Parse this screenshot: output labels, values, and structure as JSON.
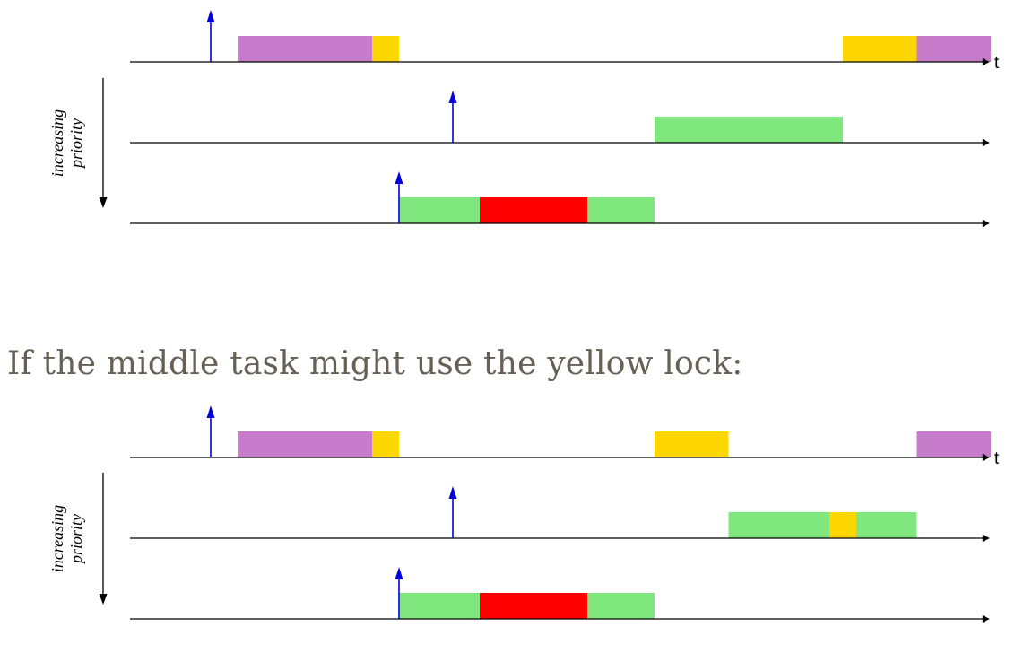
{
  "caption": "If the middle task might use the yellow lock:",
  "priority_label_line1": "increasing",
  "priority_label_line2": "priority",
  "time_label": "t",
  "colors": {
    "purple": "#c77ccb",
    "yellow": "#ffd700",
    "green": "#80e77f",
    "red": "#ff0000",
    "arrival": "#0000dd",
    "axis": "#000000"
  },
  "diagrams": [
    {
      "name": "without-middle-lock",
      "tasks": [
        {
          "name": "low-priority-task",
          "arrival": 3,
          "segments": [
            {
              "start": 4,
              "end": 9,
              "color": "purple"
            },
            {
              "start": 9,
              "end": 10,
              "color": "yellow"
            },
            {
              "start": 26.5,
              "end": 29.25,
              "color": "yellow"
            },
            {
              "start": 29.25,
              "end": 32,
              "color": "purple"
            }
          ]
        },
        {
          "name": "middle-priority-task",
          "arrival": 12,
          "segments": [
            {
              "start": 19.5,
              "end": 26.5,
              "color": "green"
            }
          ]
        },
        {
          "name": "high-priority-task",
          "arrival": 10,
          "segments": [
            {
              "start": 10,
              "end": 13,
              "color": "green"
            },
            {
              "start": 13,
              "end": 17,
              "color": "red"
            },
            {
              "start": 17,
              "end": 19.5,
              "color": "green"
            }
          ]
        }
      ]
    },
    {
      "name": "middle-task-uses-yellow-lock",
      "tasks": [
        {
          "name": "low-priority-task",
          "arrival": 3,
          "segments": [
            {
              "start": 4,
              "end": 9,
              "color": "purple"
            },
            {
              "start": 9,
              "end": 10,
              "color": "yellow"
            },
            {
              "start": 19.5,
              "end": 22.25,
              "color": "yellow"
            },
            {
              "start": 29.25,
              "end": 32,
              "color": "purple"
            }
          ]
        },
        {
          "name": "middle-priority-task",
          "arrival": 12,
          "segments": [
            {
              "start": 22.25,
              "end": 26,
              "color": "green"
            },
            {
              "start": 26,
              "end": 27,
              "color": "yellow"
            },
            {
              "start": 27,
              "end": 29.25,
              "color": "green"
            }
          ]
        },
        {
          "name": "high-priority-task",
          "arrival": 10,
          "segments": [
            {
              "start": 10,
              "end": 13,
              "color": "green"
            },
            {
              "start": 13,
              "end": 17,
              "color": "red"
            },
            {
              "start": 17,
              "end": 19.5,
              "color": "green"
            }
          ]
        }
      ]
    }
  ]
}
